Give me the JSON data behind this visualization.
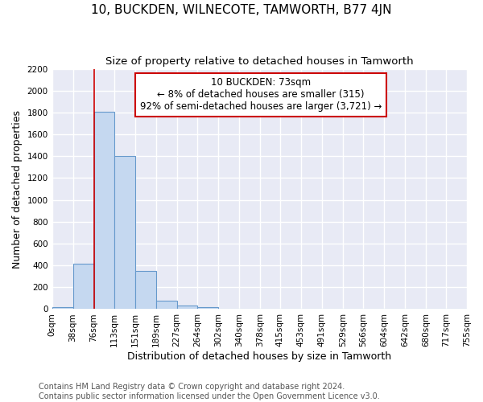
{
  "title": "10, BUCKDEN, WILNECOTE, TAMWORTH, B77 4JN",
  "subtitle": "Size of property relative to detached houses in Tamworth",
  "xlabel": "Distribution of detached houses by size in Tamworth",
  "ylabel": "Number of detached properties",
  "footnote1": "Contains HM Land Registry data © Crown copyright and database right 2024.",
  "footnote2": "Contains public sector information licensed under the Open Government Licence v3.0.",
  "annotation_line1": "10 BUCKDEN: 73sqm",
  "annotation_line2": "← 8% of detached houses are smaller (315)",
  "annotation_line3": "92% of semi-detached houses are larger (3,721) →",
  "bar_color": "#c5d8f0",
  "bar_edge_color": "#6699cc",
  "grid_color": "#d0d0e8",
  "background_color": "#e8eaf5",
  "red_line_x": 76,
  "bin_edges": [
    0,
    38,
    76,
    113,
    151,
    189,
    227,
    264,
    302,
    340,
    378,
    415,
    453,
    491,
    529,
    566,
    604,
    642,
    680,
    717,
    755
  ],
  "bar_heights": [
    15,
    415,
    1810,
    1400,
    350,
    80,
    30,
    20,
    0,
    0,
    0,
    0,
    0,
    0,
    0,
    0,
    0,
    0,
    0,
    0
  ],
  "ylim": [
    0,
    2200
  ],
  "yticks": [
    0,
    200,
    400,
    600,
    800,
    1000,
    1200,
    1400,
    1600,
    1800,
    2000,
    2200
  ],
  "annotation_box_color": "#ffffff",
  "annotation_box_edge": "#cc0000",
  "red_line_color": "#cc0000",
  "title_fontsize": 11,
  "subtitle_fontsize": 9.5,
  "axis_label_fontsize": 9,
  "tick_fontsize": 7.5,
  "annotation_fontsize": 8.5,
  "footnote_fontsize": 7
}
